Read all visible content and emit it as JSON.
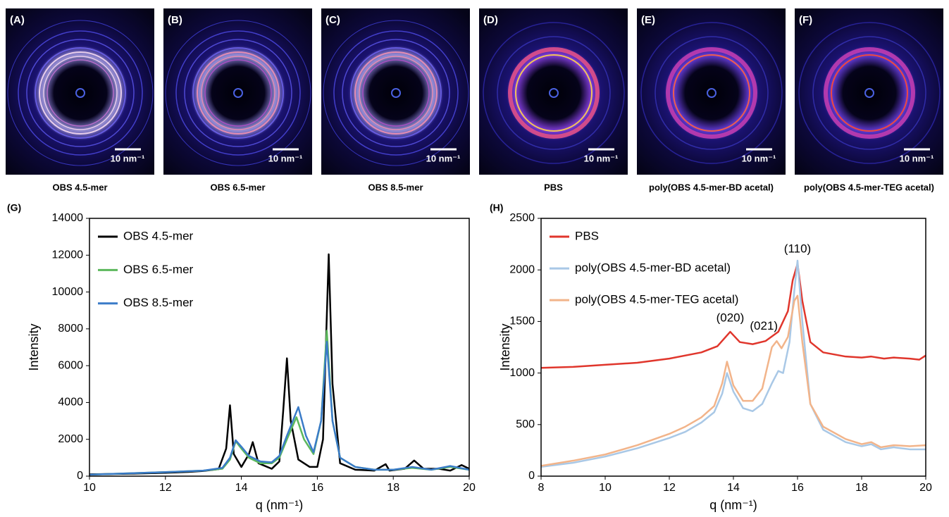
{
  "panels": [
    {
      "label": "(A)",
      "caption": "OBS 4.5-mer",
      "scale_bar": "10 nm⁻¹"
    },
    {
      "label": "(B)",
      "caption": "OBS 6.5-mer",
      "scale_bar": "10 nm⁻¹"
    },
    {
      "label": "(C)",
      "caption": "OBS 8.5-mer",
      "scale_bar": "10 nm⁻¹"
    },
    {
      "label": "(D)",
      "caption": "PBS",
      "scale_bar": "10 nm⁻¹"
    },
    {
      "label": "(E)",
      "caption": "poly(OBS 4.5-mer-BD acetal)",
      "scale_bar": "10 nm⁻¹"
    },
    {
      "label": "(F)",
      "caption": "poly(OBS 4.5-mer-TEG acetal)",
      "scale_bar": "10 nm⁻¹"
    }
  ],
  "chart_data": [
    {
      "type": "line",
      "panel_label": "(G)",
      "x_label": "q (nm⁻¹)",
      "y_label": "Intensity",
      "xlim": [
        10,
        20
      ],
      "xticks": [
        10,
        12,
        14,
        16,
        18,
        20
      ],
      "ylim": [
        0,
        14000
      ],
      "yticks": [
        0,
        2000,
        4000,
        6000,
        8000,
        10000,
        12000,
        14000
      ],
      "legend": "upper-left",
      "series": [
        {
          "name": "OBS 4.5-mer",
          "color": "#000000",
          "x": [
            10,
            11,
            12,
            12.6,
            13,
            13.4,
            13.6,
            13.7,
            13.8,
            14,
            14.2,
            14.3,
            14.45,
            14.8,
            15,
            15.1,
            15.2,
            15.3,
            15.5,
            15.8,
            16,
            16.15,
            16.3,
            16.4,
            16.6,
            17,
            17.5,
            17.8,
            17.9,
            18.3,
            18.55,
            18.8,
            19.2,
            19.5,
            19.8,
            20
          ],
          "values": [
            100,
            130,
            180,
            230,
            280,
            380,
            1500,
            3850,
            1200,
            500,
            1200,
            1850,
            700,
            400,
            800,
            3500,
            6400,
            3000,
            900,
            500,
            500,
            2000,
            12050,
            5000,
            700,
            350,
            300,
            650,
            300,
            400,
            850,
            400,
            400,
            300,
            600,
            400
          ]
        },
        {
          "name": "OBS 6.5-mer",
          "color": "#5cb85c",
          "x": [
            10,
            12,
            13,
            13.5,
            13.7,
            13.85,
            14,
            14.2,
            14.5,
            14.8,
            15,
            15.2,
            15.45,
            15.65,
            15.9,
            16.1,
            16.25,
            16.4,
            16.6,
            17,
            17.5,
            18,
            18.5,
            19,
            19.5,
            20
          ],
          "values": [
            80,
            220,
            300,
            400,
            900,
            1900,
            1500,
            1000,
            700,
            700,
            1000,
            2000,
            3200,
            2000,
            1200,
            3000,
            7900,
            3000,
            1000,
            500,
            350,
            350,
            450,
            350,
            500,
            350
          ]
        },
        {
          "name": "OBS 8.5-mer",
          "color": "#3a7bc8",
          "x": [
            10,
            12,
            13,
            13.5,
            13.7,
            13.85,
            14,
            14.2,
            14.5,
            14.8,
            15,
            15.2,
            15.5,
            15.7,
            15.9,
            16.1,
            16.25,
            16.4,
            16.6,
            17,
            17.5,
            18,
            18.5,
            19,
            19.5,
            20
          ],
          "values": [
            80,
            220,
            300,
            450,
            1000,
            1950,
            1600,
            1100,
            800,
            750,
            1100,
            2200,
            3750,
            2200,
            1300,
            3000,
            7300,
            3000,
            1000,
            500,
            350,
            350,
            500,
            350,
            550,
            350
          ]
        }
      ]
    },
    {
      "type": "line",
      "panel_label": "(H)",
      "x_label": "q (nm⁻¹)",
      "y_label": "Intensity",
      "xlim": [
        8,
        20
      ],
      "xticks": [
        8,
        10,
        12,
        14,
        16,
        18,
        20
      ],
      "ylim": [
        0,
        2500
      ],
      "yticks": [
        0,
        500,
        1000,
        1500,
        2000,
        2500
      ],
      "legend": "upper-left",
      "annotations": [
        "(020)",
        "(021)",
        "(110)"
      ],
      "series": [
        {
          "name": "PBS",
          "color": "#e0362c",
          "x": [
            8,
            9,
            10,
            11,
            12,
            13,
            13.5,
            13.9,
            14.2,
            14.6,
            15,
            15.4,
            15.7,
            15.85,
            16,
            16.15,
            16.4,
            16.8,
            17.5,
            18,
            18.3,
            18.7,
            19,
            19.5,
            19.8,
            20
          ],
          "values": [
            1050,
            1060,
            1080,
            1100,
            1140,
            1200,
            1260,
            1400,
            1300,
            1280,
            1310,
            1400,
            1600,
            1900,
            2060,
            1700,
            1300,
            1200,
            1160,
            1150,
            1160,
            1140,
            1150,
            1140,
            1130,
            1170
          ]
        },
        {
          "name": "poly(OBS 4.5-mer-BD acetal)",
          "color": "#a9c8e6",
          "x": [
            8,
            9,
            10,
            11,
            12,
            12.5,
            13,
            13.4,
            13.65,
            13.8,
            14,
            14.3,
            14.6,
            14.9,
            15.2,
            15.4,
            15.55,
            15.75,
            15.9,
            16,
            16.15,
            16.4,
            16.8,
            17.5,
            18,
            18.3,
            18.6,
            19,
            19.5,
            20
          ],
          "values": [
            90,
            130,
            190,
            270,
            370,
            430,
            520,
            620,
            800,
            1000,
            820,
            660,
            630,
            700,
            900,
            1020,
            1000,
            1300,
            1800,
            2090,
            1500,
            700,
            450,
            330,
            290,
            310,
            260,
            280,
            260,
            260
          ]
        },
        {
          "name": "poly(OBS 4.5-mer-TEG acetal)",
          "color": "#f2b48a",
          "x": [
            8,
            9,
            10,
            11,
            12,
            12.5,
            13,
            13.4,
            13.65,
            13.8,
            14,
            14.3,
            14.6,
            14.9,
            15.2,
            15.35,
            15.5,
            15.7,
            15.9,
            16,
            16.15,
            16.4,
            16.8,
            17.5,
            18,
            18.3,
            18.6,
            19,
            19.5,
            20
          ],
          "values": [
            100,
            150,
            210,
            300,
            410,
            480,
            570,
            680,
            900,
            1110,
            880,
            730,
            730,
            850,
            1250,
            1310,
            1240,
            1350,
            1700,
            1750,
            1300,
            700,
            480,
            360,
            310,
            330,
            280,
            300,
            290,
            300
          ]
        }
      ]
    }
  ]
}
